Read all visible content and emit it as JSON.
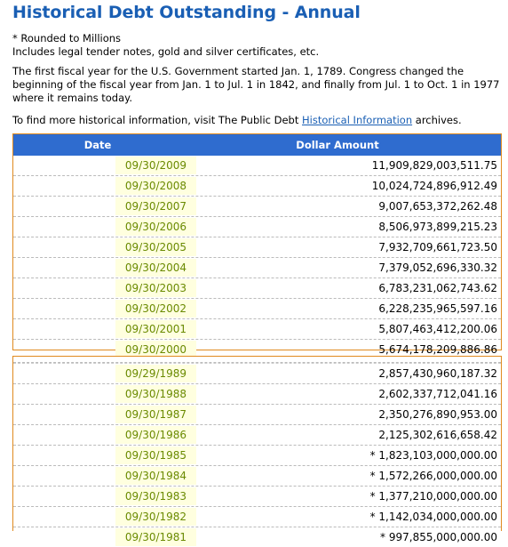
{
  "title": "Historical Debt Outstanding - Annual",
  "notes": [
    "* Rounded to Millions",
    "Includes legal tender notes, gold and silver certificates, etc."
  ],
  "paragraph": "The first fiscal year for the U.S. Government started Jan. 1, 1789. Congress changed the beginning of the fiscal year from Jan. 1 to Jul. 1 in 1842, and finally from Jul. 1 to Oct. 1 in 1977 where it remains today.",
  "link_line": {
    "prefix": "To find more historical information, visit The Public Debt ",
    "link_text": "Historical Information",
    "suffix": " archives."
  },
  "table": {
    "col_date": "Date",
    "col_amount": "Dollar Amount",
    "rows_2000s": [
      {
        "date": "09/30/2009",
        "amount": "11,909,829,003,511.75"
      },
      {
        "date": "09/30/2008",
        "amount": "10,024,724,896,912.49"
      },
      {
        "date": "09/30/2007",
        "amount": "9,007,653,372,262.48"
      },
      {
        "date": "09/30/2006",
        "amount": "8,506,973,899,215.23"
      },
      {
        "date": "09/30/2005",
        "amount": "7,932,709,661,723.50"
      },
      {
        "date": "09/30/2004",
        "amount": "7,379,052,696,330.32"
      },
      {
        "date": "09/30/2003",
        "amount": "6,783,231,062,743.62"
      },
      {
        "date": "09/30/2002",
        "amount": "6,228,235,965,597.16"
      },
      {
        "date": "09/30/2001",
        "amount": "5,807,463,412,200.06"
      },
      {
        "date": "09/30/2000",
        "amount": "5,674,178,209,886.86"
      }
    ],
    "rows_1980s": [
      {
        "date": "09/29/1989",
        "amount": "2,857,430,960,187.32"
      },
      {
        "date": "09/30/1988",
        "amount": "2,602,337,712,041.16"
      },
      {
        "date": "09/30/1987",
        "amount": "2,350,276,890,953.00"
      },
      {
        "date": "09/30/1986",
        "amount": "2,125,302,616,658.42"
      },
      {
        "date": "09/30/1985",
        "amount": "* 1,823,103,000,000.00"
      },
      {
        "date": "09/30/1984",
        "amount": "* 1,572,266,000,000.00"
      },
      {
        "date": "09/30/1983",
        "amount": "* 1,377,210,000,000.00"
      },
      {
        "date": "09/30/1982",
        "amount": "* 1,142,034,000,000.00"
      },
      {
        "date": "09/30/1981",
        "amount": "* 997,855,000,000.00"
      }
    ]
  }
}
